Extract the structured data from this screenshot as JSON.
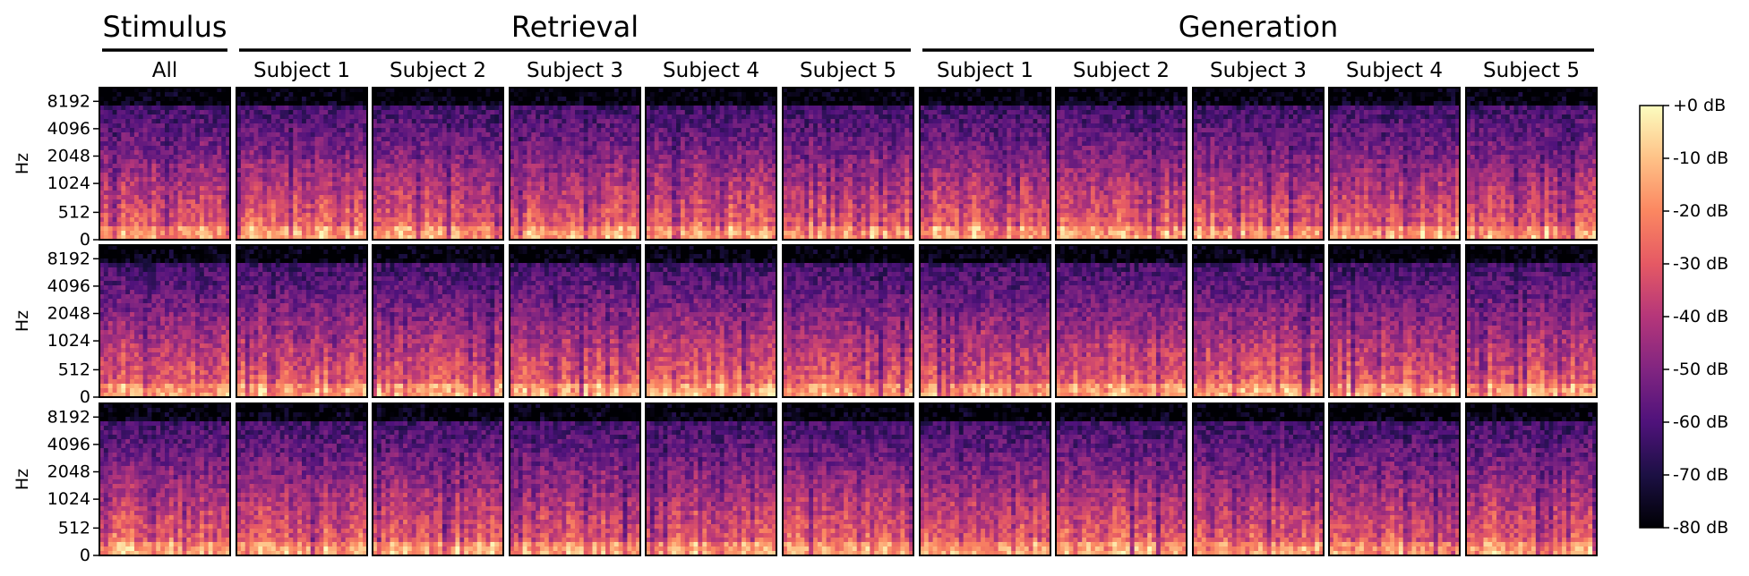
{
  "chart_data": {
    "type": "heatmap",
    "groups": [
      {
        "label": "Stimulus",
        "columns": [
          "All"
        ]
      },
      {
        "label": "Retrieval",
        "columns": [
          "Subject 1",
          "Subject 2",
          "Subject 3",
          "Subject 4",
          "Subject 5"
        ]
      },
      {
        "label": "Generation",
        "columns": [
          "Subject 1",
          "Subject 2",
          "Subject 3",
          "Subject 4",
          "Subject 5"
        ]
      }
    ],
    "rows": 3,
    "ylabel": "Hz",
    "yticks": [
      "8192",
      "4096",
      "2048",
      "1024",
      "512",
      "0"
    ],
    "colorbar": {
      "colormap": "magma",
      "range": [
        -80,
        0
      ],
      "ticks": [
        "+0 dB",
        "-10 dB",
        "-20 dB",
        "-30 dB",
        "-40 dB",
        "-50 dB",
        "-60 dB",
        "-70 dB",
        "-80 dB"
      ]
    },
    "colormap_stops": [
      "#000004",
      "#1c1044",
      "#4f127b",
      "#812581",
      "#b5367a",
      "#e55964",
      "#fb8761",
      "#fec287",
      "#fcfdbf"
    ]
  }
}
